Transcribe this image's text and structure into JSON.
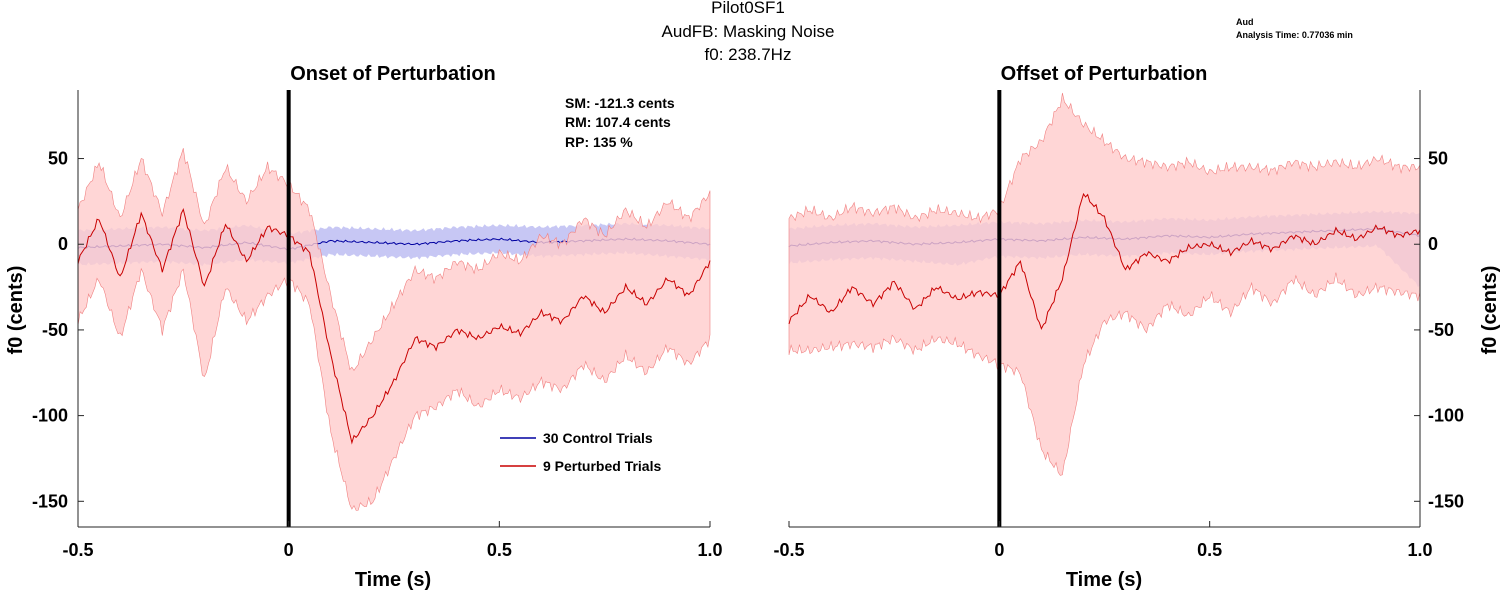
{
  "figure": {
    "title_lines": [
      "Pilot0SF1",
      "AudFB: Masking Noise",
      "f0: 238.7Hz"
    ],
    "corner_label": "Aud",
    "analysis_time": "Analysis Time: 0.77036 min"
  },
  "colors": {
    "control_line": "#0000a0",
    "control_band": "#b4b4f0",
    "perturbed_line": "#c80000",
    "perturbed_band": "#ffcccc",
    "perturbed_band_edge": "#f08080",
    "onset_marker": "#000000"
  },
  "chart_data": [
    {
      "type": "line",
      "title": "Onset of Perturbation",
      "xlabel": "Time (s)",
      "ylabel": "f0 (cents)",
      "y_axis_side": "left",
      "xlim": [
        -0.5,
        1.0
      ],
      "ylim": [
        -165,
        90
      ],
      "xticks": [
        -0.5,
        0,
        0.5,
        1.0
      ],
      "xtick_labels": [
        "-0.5",
        "0",
        "0.5",
        "1.0"
      ],
      "yticks": [
        50,
        0,
        -50,
        -100,
        -150
      ],
      "ytick_labels": [
        "50",
        "0",
        "-50",
        "-100",
        "-150"
      ],
      "grid": false,
      "event_line_x": 0,
      "stats": [
        "SM: -121.3 cents",
        "RM: 107.4 cents",
        "RP: 135 %"
      ],
      "legend": {
        "placement": "lower-middle",
        "entries": [
          "30 Control Trials",
          "9 Perturbed Trials"
        ]
      },
      "series": [
        {
          "name": "30 Control Trials",
          "x": [
            -0.5,
            -0.4,
            -0.3,
            -0.2,
            -0.1,
            0.0,
            0.1,
            0.2,
            0.3,
            0.4,
            0.5,
            0.6,
            0.7,
            0.8,
            0.9,
            1.0
          ],
          "mean": [
            -2,
            -1,
            0,
            -2,
            1,
            -3,
            2,
            1,
            0,
            2,
            3,
            1,
            2,
            3,
            2,
            0
          ],
          "upper": [
            8,
            9,
            10,
            8,
            11,
            6,
            10,
            9,
            8,
            10,
            11,
            10,
            11,
            12,
            11,
            9
          ],
          "lower": [
            -12,
            -11,
            -10,
            -12,
            -9,
            -11,
            -6,
            -7,
            -8,
            -6,
            -5,
            -7,
            -6,
            -5,
            -7,
            -9
          ]
        },
        {
          "name": "9 Perturbed Trials",
          "x": [
            -0.5,
            -0.45,
            -0.4,
            -0.35,
            -0.3,
            -0.25,
            -0.2,
            -0.15,
            -0.1,
            -0.05,
            0.0,
            0.05,
            0.1,
            0.15,
            0.2,
            0.25,
            0.3,
            0.35,
            0.4,
            0.45,
            0.5,
            0.55,
            0.6,
            0.65,
            0.7,
            0.75,
            0.8,
            0.85,
            0.9,
            0.95,
            1.0
          ],
          "mean": [
            -10,
            15,
            -20,
            18,
            -15,
            20,
            -25,
            12,
            -10,
            10,
            5,
            -5,
            -65,
            -115,
            -100,
            -80,
            -55,
            -60,
            -50,
            -55,
            -48,
            -52,
            -40,
            -45,
            -30,
            -40,
            -25,
            -35,
            -20,
            -30,
            -10
          ],
          "upper": [
            20,
            48,
            15,
            50,
            18,
            55,
            10,
            45,
            25,
            45,
            35,
            20,
            -30,
            -75,
            -55,
            -35,
            -15,
            -20,
            -10,
            -15,
            -5,
            -10,
            5,
            0,
            15,
            5,
            20,
            10,
            25,
            15,
            30
          ],
          "lower": [
            -45,
            -20,
            -55,
            -15,
            -50,
            -15,
            -80,
            -25,
            -45,
            -30,
            -20,
            -35,
            -110,
            -155,
            -150,
            -125,
            -100,
            -95,
            -85,
            -95,
            -85,
            -90,
            -80,
            -85,
            -70,
            -80,
            -65,
            -75,
            -60,
            -70,
            -55
          ]
        }
      ]
    },
    {
      "type": "line",
      "title": "Offset of Perturbation",
      "xlabel": "Time (s)",
      "ylabel": "f0 (cents)",
      "y_axis_side": "right",
      "xlim": [
        -0.5,
        1.0
      ],
      "ylim": [
        -165,
        90
      ],
      "xticks": [
        -0.5,
        0,
        0.5,
        1.0
      ],
      "xtick_labels": [
        "-0.5",
        "0",
        "0.5",
        "1.0"
      ],
      "yticks": [
        50,
        0,
        -50,
        -100,
        -150
      ],
      "ytick_labels": [
        "50",
        "0",
        "-50",
        "-100",
        "-150"
      ],
      "grid": false,
      "event_line_x": 0,
      "series": [
        {
          "name": "30 Control Trials",
          "x": [
            -0.5,
            -0.4,
            -0.3,
            -0.2,
            -0.1,
            0.0,
            0.1,
            0.2,
            0.3,
            0.4,
            0.5,
            0.6,
            0.7,
            0.8,
            0.9,
            1.0
          ],
          "mean": [
            -1,
            1,
            2,
            0,
            1,
            3,
            2,
            4,
            3,
            5,
            4,
            6,
            7,
            8,
            9,
            5
          ],
          "upper": [
            9,
            11,
            12,
            10,
            11,
            13,
            12,
            14,
            13,
            15,
            14,
            16,
            17,
            18,
            19,
            18
          ],
          "lower": [
            -11,
            -9,
            -8,
            -10,
            -12,
            -7,
            -8,
            -6,
            -7,
            -5,
            -6,
            -4,
            -3,
            -2,
            -1,
            -25
          ]
        },
        {
          "name": "9 Perturbed Trials",
          "x": [
            -0.5,
            -0.45,
            -0.4,
            -0.35,
            -0.3,
            -0.25,
            -0.2,
            -0.15,
            -0.1,
            -0.05,
            0.0,
            0.05,
            0.1,
            0.15,
            0.2,
            0.25,
            0.3,
            0.35,
            0.4,
            0.45,
            0.5,
            0.55,
            0.6,
            0.65,
            0.7,
            0.75,
            0.8,
            0.85,
            0.9,
            0.95,
            1.0
          ],
          "mean": [
            -45,
            -30,
            -40,
            -25,
            -35,
            -22,
            -38,
            -25,
            -32,
            -28,
            -30,
            -10,
            -50,
            -20,
            30,
            15,
            -15,
            -5,
            -10,
            -2,
            0,
            -5,
            2,
            -3,
            5,
            0,
            8,
            3,
            10,
            5,
            8
          ],
          "upper": [
            15,
            20,
            15,
            22,
            18,
            22,
            15,
            20,
            18,
            15,
            20,
            50,
            60,
            85,
            70,
            60,
            50,
            48,
            45,
            48,
            42,
            45,
            45,
            43,
            48,
            45,
            48,
            45,
            50,
            45,
            45
          ],
          "lower": [
            -62,
            -62,
            -60,
            -58,
            -60,
            -55,
            -62,
            -55,
            -58,
            -65,
            -70,
            -75,
            -120,
            -135,
            -70,
            -45,
            -40,
            -50,
            -35,
            -42,
            -30,
            -40,
            -25,
            -35,
            -20,
            -30,
            -20,
            -30,
            -25,
            -28,
            -30
          ]
        }
      ]
    }
  ]
}
